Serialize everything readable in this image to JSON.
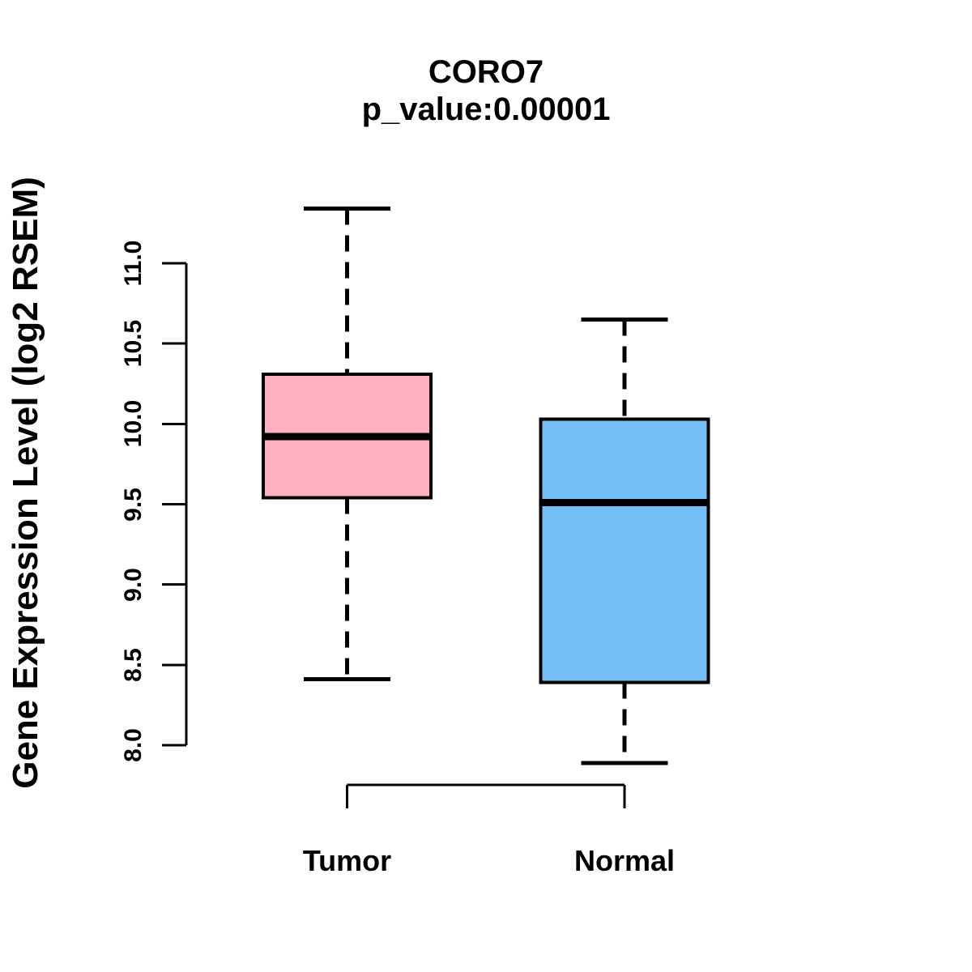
{
  "title": "CORO7",
  "subtitle": "p_value:0.00001",
  "chart_data": {
    "type": "boxplot",
    "title": "CORO7",
    "subtitle": "p_value:0.00001",
    "ylabel": "Gene Expression Level (log2 RSEM)",
    "xlabel": "",
    "categories": [
      "Tumor",
      "Normal"
    ],
    "series": [
      {
        "name": "Tumor",
        "min": 8.41,
        "q1": 9.54,
        "median": 9.92,
        "q3": 10.31,
        "max": 11.34,
        "fill_color": "#FFAFC0"
      },
      {
        "name": "Normal",
        "min": 7.89,
        "q1": 8.39,
        "median": 9.51,
        "q3": 10.03,
        "max": 10.65,
        "fill_color": "#74BFF7"
      }
    ],
    "yticks": [
      8.0,
      8.5,
      9.0,
      9.5,
      10.0,
      10.5,
      11.0
    ],
    "ytick_labels": [
      "8.0",
      "8.5",
      "9.0",
      "9.5",
      "10.0",
      "10.5",
      "11.0"
    ],
    "ylim": [
      8.0,
      11.0
    ],
    "grid": false,
    "legend": "none",
    "whisker_style": "dashed",
    "stroke_color": "#000000",
    "background_color": "#FFFFFF"
  }
}
